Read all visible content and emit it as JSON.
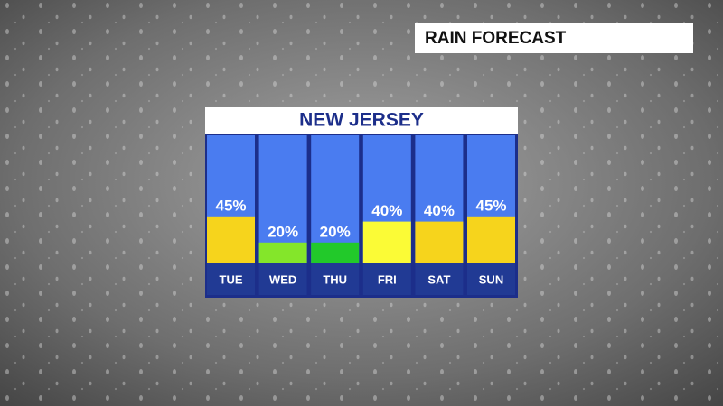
{
  "header": {
    "title": "RAIN FORECAST"
  },
  "chart_data": {
    "type": "bar",
    "title": "NEW JERSEY",
    "categories": [
      "TUE",
      "WED",
      "THU",
      "FRI",
      "SAT",
      "SUN"
    ],
    "values": [
      45,
      20,
      20,
      40,
      40,
      45
    ],
    "value_labels": [
      "45%",
      "20%",
      "20%",
      "40%",
      "40%",
      "45%"
    ],
    "colors": [
      "#f6d41c",
      "#84e62a",
      "#22c92a",
      "#fbfb36",
      "#f6d41c",
      "#f6d41c"
    ]
  }
}
